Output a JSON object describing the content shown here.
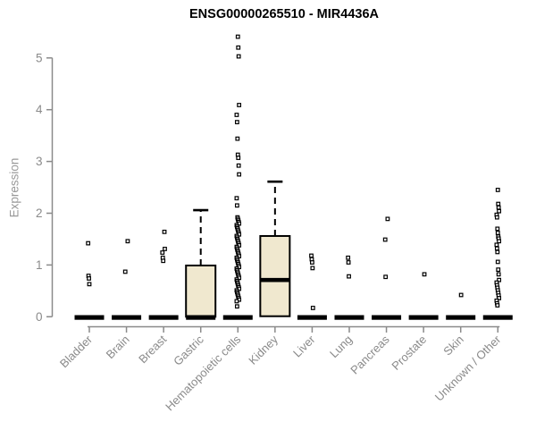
{
  "title": "ENSG00000265510 - MIR4436A",
  "chart_data": {
    "type": "boxplot",
    "title": "ENSG00000265510 - MIR4436A",
    "xlabel": "",
    "ylabel": "Expression",
    "ylim": [
      0,
      5.5
    ],
    "yticks": [
      0,
      1,
      2,
      3,
      4,
      5
    ],
    "grid": false,
    "groups": [
      {
        "label": "Bladder",
        "q1": 0,
        "median": 0,
        "q3": 0,
        "whisker_low": 0,
        "whisker_high": 0,
        "outliers": [
          1.42,
          0.79,
          0.74,
          0.63
        ]
      },
      {
        "label": "Brain",
        "q1": 0,
        "median": 0,
        "q3": 0,
        "whisker_low": 0,
        "whisker_high": 0,
        "outliers": [
          1.46,
          0.87
        ]
      },
      {
        "label": "Breast",
        "q1": 0,
        "median": 0,
        "q3": 0,
        "whisker_low": 0,
        "whisker_high": 0,
        "outliers": [
          1.64,
          1.31,
          1.24,
          1.14,
          1.08
        ]
      },
      {
        "label": "Gastric",
        "q1": 0,
        "median": 0,
        "q3": 0.99,
        "whisker_low": 0,
        "whisker_high": 2.06,
        "outliers": []
      },
      {
        "label": "Hematopoietic cells",
        "q1": 0,
        "median": 0,
        "q3": 0,
        "whisker_low": 0,
        "whisker_high": 0,
        "outliers": [
          5.41,
          5.2,
          5.03,
          4.09,
          3.9,
          3.76,
          3.44,
          3.13,
          3.07,
          2.92,
          2.75,
          2.29,
          2.15,
          1.92,
          1.89,
          1.86,
          1.83,
          1.8,
          1.77,
          1.74,
          1.71,
          1.68,
          1.65,
          1.62,
          1.59,
          1.56,
          1.53,
          1.5,
          1.47,
          1.44,
          1.41,
          1.38,
          1.35,
          1.32,
          1.29,
          1.26,
          1.23,
          1.2,
          1.17,
          1.14,
          1.11,
          1.08,
          1.05,
          1.02,
          0.99,
          0.96,
          0.93,
          0.9,
          0.87,
          0.84,
          0.81,
          0.78,
          0.75,
          0.72,
          0.69,
          0.66,
          0.63,
          0.6,
          0.57,
          0.54,
          0.51,
          0.48,
          0.45,
          0.42,
          0.39,
          0.36,
          0.33,
          0.3,
          0.2
        ]
      },
      {
        "label": "Kidney",
        "q1": 0.01,
        "median": 0.71,
        "q3": 1.56,
        "whisker_low": 0,
        "whisker_high": 2.61,
        "outliers": []
      },
      {
        "label": "Liver",
        "q1": 0,
        "median": 0,
        "q3": 0,
        "whisker_low": 0,
        "whisker_high": 0,
        "outliers": [
          1.18,
          1.11,
          1.05,
          0.94,
          0.17
        ]
      },
      {
        "label": "Lung",
        "q1": 0,
        "median": 0,
        "q3": 0,
        "whisker_low": 0,
        "whisker_high": 0,
        "outliers": [
          1.14,
          1.05,
          0.78
        ]
      },
      {
        "label": "Pancreas",
        "q1": 0,
        "median": 0,
        "q3": 0,
        "whisker_low": 0,
        "whisker_high": 0,
        "outliers": [
          1.89,
          1.49,
          0.77
        ]
      },
      {
        "label": "Prostate",
        "q1": 0,
        "median": 0,
        "q3": 0,
        "whisker_low": 0,
        "whisker_high": 0,
        "outliers": [
          0.82
        ]
      },
      {
        "label": "Skin",
        "q1": 0,
        "median": 0,
        "q3": 0,
        "whisker_low": 0,
        "whisker_high": 0,
        "outliers": [
          0.42
        ]
      },
      {
        "label": "Unknown / Other",
        "q1": 0,
        "median": 0,
        "q3": 0,
        "whisker_low": 0,
        "whisker_high": 0,
        "outliers": [
          2.45,
          2.18,
          2.11,
          2.04,
          1.97,
          1.92,
          1.7,
          1.62,
          1.55,
          1.51,
          1.46,
          1.39,
          1.32,
          1.25,
          1.06,
          0.91,
          0.82,
          0.71,
          0.66,
          0.61,
          0.56,
          0.51,
          0.46,
          0.41,
          0.36,
          0.31,
          0.26,
          0.22
        ]
      }
    ]
  },
  "colors": {
    "background": "#ffffff",
    "box_fill": "#F0E8CF",
    "box_border": "#000000",
    "median": "#000000",
    "whisker": "#000000",
    "outlier_stroke": "#000000",
    "outlier_fill": "#ffffff",
    "axis": "#8A8A8A",
    "tick_label": "#8A8A8A",
    "axis_label": "#999999",
    "title": "#000000"
  }
}
